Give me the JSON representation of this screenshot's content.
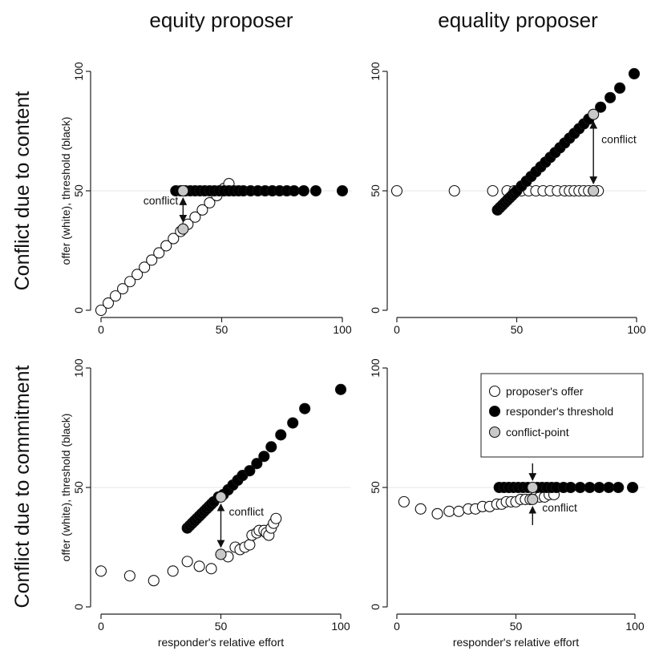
{
  "column_titles": [
    "equity proposer",
    "equality proposer"
  ],
  "row_titles": [
    "Conflict due to content",
    "Conflict due to commitment"
  ],
  "legend": {
    "offer": "proposer's offer",
    "threshold": "responder's threshold",
    "conflict": "conflict-point"
  },
  "annotation_label": "conflict",
  "colors": {
    "offer_fill": "#ffffff",
    "threshold_fill": "#000000",
    "conflict_fill": "#c8c8c8",
    "grid": "#e6e6e6"
  },
  "chart_data": [
    {
      "type": "scatter",
      "panel": "equity proposer / Conflict due to content",
      "xlabel": "",
      "ylabel": "offer (white), threshold (black)",
      "xlim": [
        0,
        100
      ],
      "ylim": [
        0,
        100
      ],
      "xticks": [
        0,
        50,
        100
      ],
      "yticks": [
        0,
        50,
        100
      ],
      "grid": "horizontal at 50",
      "series": [
        {
          "role": "offer",
          "points": [
            [
              0,
              0
            ],
            [
              3,
              3
            ],
            [
              6,
              6
            ],
            [
              9,
              9
            ],
            [
              12,
              12
            ],
            [
              15,
              15
            ],
            [
              18,
              18
            ],
            [
              21,
              21
            ],
            [
              24,
              24
            ],
            [
              27,
              27
            ],
            [
              30,
              30
            ],
            [
              33,
              33
            ],
            [
              36,
              36
            ],
            [
              39,
              39
            ],
            [
              42,
              42
            ],
            [
              45,
              45
            ],
            [
              48,
              48
            ],
            [
              51,
              51
            ],
            [
              53,
              53
            ]
          ]
        },
        {
          "role": "threshold",
          "points": [
            [
              31,
              50
            ],
            [
              33,
              50
            ],
            [
              35,
              50
            ],
            [
              37,
              50
            ],
            [
              39,
              50
            ],
            [
              41,
              50
            ],
            [
              43,
              50
            ],
            [
              45,
              50
            ],
            [
              47,
              50
            ],
            [
              49,
              50
            ],
            [
              51,
              50
            ],
            [
              53,
              50
            ],
            [
              55,
              50
            ],
            [
              57,
              50
            ],
            [
              59,
              50
            ],
            [
              62,
              50
            ],
            [
              65,
              50
            ],
            [
              68,
              50
            ],
            [
              71,
              50
            ],
            [
              74,
              50
            ],
            [
              77,
              50
            ],
            [
              80,
              50
            ],
            [
              84,
              50
            ],
            [
              89,
              50
            ],
            [
              100,
              50
            ]
          ]
        },
        {
          "role": "conflict",
          "points": [
            [
              34,
              50
            ],
            [
              34,
              34
            ]
          ]
        }
      ],
      "annotation": {
        "text": "conflict",
        "x": 34,
        "y_from": 34,
        "y_to": 50
      }
    },
    {
      "type": "scatter",
      "panel": "equality proposer / Conflict due to content",
      "xlabel": "",
      "ylabel": "",
      "xlim": [
        0,
        100
      ],
      "ylim": [
        0,
        100
      ],
      "xticks": [
        0,
        50,
        100
      ],
      "yticks": [
        0,
        50,
        100
      ],
      "grid": "horizontal at 50",
      "series": [
        {
          "role": "offer",
          "points": [
            [
              0,
              50
            ],
            [
              24,
              50
            ],
            [
              40,
              50
            ],
            [
              46,
              50
            ],
            [
              49,
              50
            ],
            [
              52,
              50
            ],
            [
              55,
              50
            ],
            [
              58,
              50
            ],
            [
              61,
              50
            ],
            [
              64,
              50
            ],
            [
              67,
              50
            ],
            [
              70,
              50
            ],
            [
              72,
              50
            ],
            [
              74,
              50
            ],
            [
              76,
              50
            ],
            [
              78,
              50
            ],
            [
              80,
              50
            ],
            [
              82,
              50
            ],
            [
              84,
              50
            ]
          ]
        },
        {
          "role": "threshold",
          "points": [
            [
              42,
              42
            ],
            [
              43,
              43
            ],
            [
              44,
              44
            ],
            [
              45,
              45
            ],
            [
              46,
              46
            ],
            [
              47,
              47
            ],
            [
              48,
              48
            ],
            [
              49,
              49
            ],
            [
              50,
              50
            ],
            [
              52,
              52
            ],
            [
              54,
              54
            ],
            [
              56,
              56
            ],
            [
              58,
              58
            ],
            [
              60,
              60
            ],
            [
              62,
              62
            ],
            [
              64,
              64
            ],
            [
              66,
              66
            ],
            [
              68,
              68
            ],
            [
              70,
              70
            ],
            [
              72,
              72
            ],
            [
              74,
              74
            ],
            [
              76,
              76
            ],
            [
              78,
              78
            ],
            [
              80,
              80
            ],
            [
              85,
              85
            ],
            [
              89,
              89
            ],
            [
              93,
              93
            ],
            [
              99,
              99
            ]
          ]
        },
        {
          "role": "conflict",
          "points": [
            [
              82,
              82
            ],
            [
              82,
              50
            ]
          ]
        }
      ],
      "annotation": {
        "text": "conflict",
        "x": 82,
        "y_from": 50,
        "y_to": 82
      }
    },
    {
      "type": "scatter",
      "panel": "equity proposer / Conflict due to commitment",
      "xlabel": "responder's relative effort",
      "ylabel": "offer (white), threshold (black)",
      "xlim": [
        0,
        100
      ],
      "ylim": [
        0,
        100
      ],
      "xticks": [
        0,
        50,
        100
      ],
      "yticks": [
        0,
        50,
        100
      ],
      "grid": "horizontal at 50",
      "series": [
        {
          "role": "offer",
          "points": [
            [
              0,
              15
            ],
            [
              12,
              13
            ],
            [
              22,
              11
            ],
            [
              30,
              15
            ],
            [
              36,
              19
            ],
            [
              41,
              17
            ],
            [
              46,
              16
            ],
            [
              53,
              21
            ],
            [
              56,
              25
            ],
            [
              58,
              24
            ],
            [
              60,
              25
            ],
            [
              62,
              26
            ],
            [
              63,
              30
            ],
            [
              65,
              31
            ],
            [
              66,
              32
            ],
            [
              68,
              32
            ],
            [
              69,
              31
            ],
            [
              70,
              30
            ],
            [
              71,
              33
            ],
            [
              72,
              35
            ],
            [
              73,
              37
            ]
          ]
        },
        {
          "role": "threshold",
          "points": [
            [
              36,
              33
            ],
            [
              37,
              34
            ],
            [
              38,
              35
            ],
            [
              39,
              36
            ],
            [
              40,
              37
            ],
            [
              41,
              38
            ],
            [
              42,
              39
            ],
            [
              43,
              40
            ],
            [
              44,
              41
            ],
            [
              45,
              42
            ],
            [
              46,
              43
            ],
            [
              47,
              44
            ],
            [
              49,
              46
            ],
            [
              51,
              47
            ],
            [
              53,
              49
            ],
            [
              55,
              51
            ],
            [
              57,
              53
            ],
            [
              59,
              55
            ],
            [
              62,
              57
            ],
            [
              65,
              60
            ],
            [
              68,
              63
            ],
            [
              71,
              67
            ],
            [
              75,
              72
            ],
            [
              80,
              77
            ],
            [
              85,
              83
            ],
            [
              100,
              91
            ]
          ]
        },
        {
          "role": "conflict",
          "points": [
            [
              50,
              46
            ],
            [
              50,
              22
            ]
          ]
        }
      ],
      "annotation": {
        "text": "conflict",
        "x": 50,
        "y_from": 22,
        "y_to": 46
      }
    },
    {
      "type": "scatter",
      "panel": "equality proposer / Conflict due to commitment",
      "xlabel": "responder's relative effort",
      "ylabel": "",
      "xlim": [
        0,
        100
      ],
      "ylim": [
        0,
        100
      ],
      "xticks": [
        0,
        50,
        100
      ],
      "yticks": [
        0,
        50,
        100
      ],
      "grid": "horizontal at 50",
      "legend": "top-right",
      "series": [
        {
          "role": "offer",
          "points": [
            [
              3,
              44
            ],
            [
              10,
              41
            ],
            [
              17,
              39
            ],
            [
              22,
              40
            ],
            [
              26,
              40
            ],
            [
              30,
              41
            ],
            [
              33,
              41
            ],
            [
              36,
              42
            ],
            [
              39,
              42
            ],
            [
              42,
              43
            ],
            [
              44,
              43
            ],
            [
              46,
              44
            ],
            [
              48,
              44
            ],
            [
              50,
              44
            ],
            [
              52,
              45
            ],
            [
              54,
              45
            ],
            [
              56,
              45
            ],
            [
              58,
              46
            ],
            [
              60,
              46
            ],
            [
              62,
              46
            ],
            [
              64,
              47
            ],
            [
              66,
              47
            ]
          ]
        },
        {
          "role": "threshold",
          "points": [
            [
              43,
              50
            ],
            [
              45,
              50
            ],
            [
              47,
              50
            ],
            [
              49,
              50
            ],
            [
              51,
              50
            ],
            [
              53,
              50
            ],
            [
              55,
              50
            ],
            [
              57,
              50
            ],
            [
              59,
              50
            ],
            [
              61,
              50
            ],
            [
              63,
              50
            ],
            [
              65,
              50
            ],
            [
              67,
              50
            ],
            [
              70,
              50
            ],
            [
              73,
              50
            ],
            [
              77,
              50
            ],
            [
              81,
              50
            ],
            [
              85,
              50
            ],
            [
              89,
              50
            ],
            [
              93,
              50
            ],
            [
              99,
              50
            ]
          ]
        },
        {
          "role": "conflict",
          "points": [
            [
              57,
              50
            ],
            [
              57,
              45
            ]
          ]
        }
      ],
      "annotation": {
        "text": "conflict",
        "x": 57,
        "y_from": 45,
        "y_to": 50
      }
    }
  ]
}
